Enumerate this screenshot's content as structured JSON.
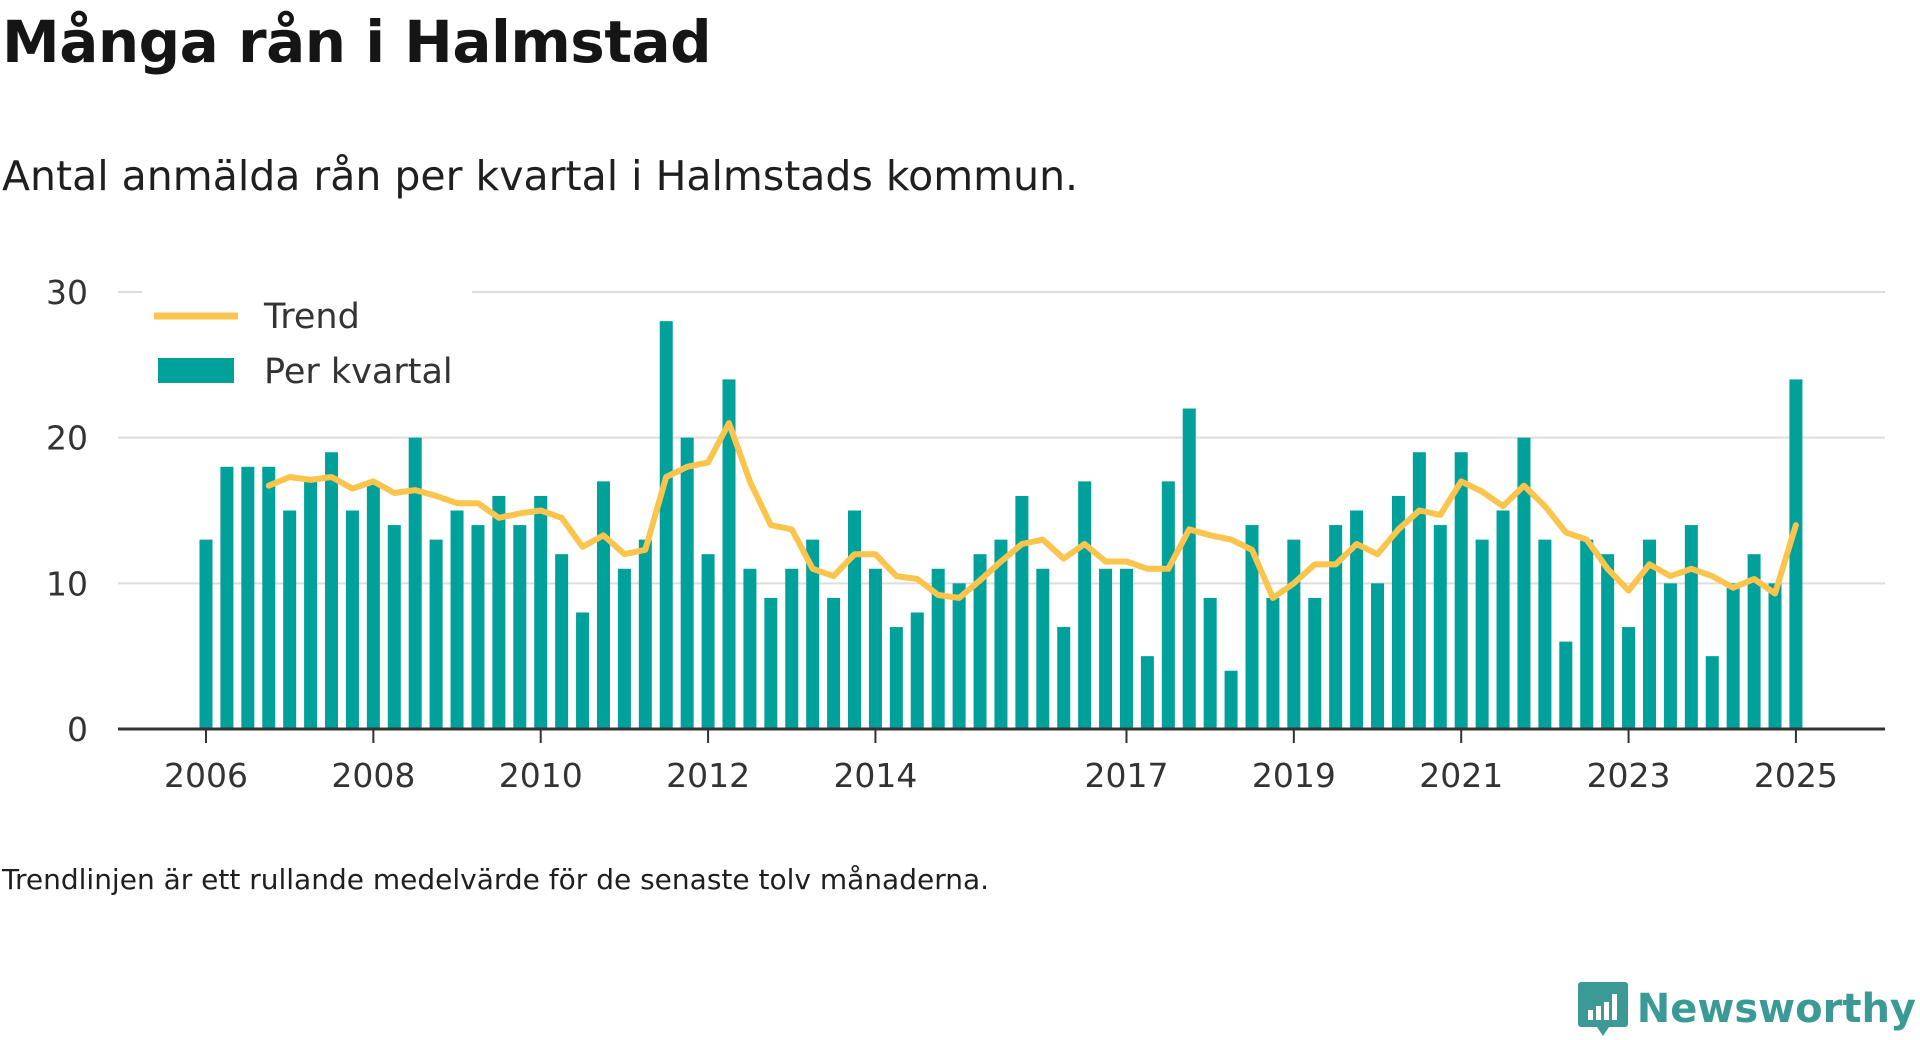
{
  "title": "Många rån i Halmstad",
  "subtitle": "Antal anmälda rån per kvartal i Halmstads kommun.",
  "footnote": "Trendlinjen är ett rullande medelvärde för de senaste tolv månaderna.",
  "brand": {
    "name": "Newsworthy",
    "color": "#3b9a95",
    "logo_icon": "bar-chart-speech-bubble-icon"
  },
  "chart_data": {
    "type": "bar",
    "x_start": "2006 Q1",
    "ylim": [
      0,
      30
    ],
    "yticks": [
      0,
      10,
      20,
      30
    ],
    "xticks": [
      "2006",
      "2008",
      "2010",
      "2012",
      "2014",
      "2017",
      "2019",
      "2021",
      "2023",
      "2025"
    ],
    "xtick_quarter_index": [
      0,
      8,
      16,
      24,
      32,
      44,
      52,
      60,
      68,
      76
    ],
    "grid": true,
    "legend_position": "top-left",
    "colors": {
      "bars": "#00a19a",
      "trend": "#fbc44d",
      "grid": "#dddddd",
      "axis": "#333333"
    },
    "series": [
      {
        "name": "Per kvartal",
        "type": "bar",
        "values": [
          13,
          18,
          18,
          18,
          15,
          17,
          19,
          15,
          17,
          14,
          20,
          13,
          15,
          14,
          16,
          14,
          16,
          12,
          8,
          17,
          11,
          13,
          28,
          20,
          12,
          24,
          11,
          9,
          11,
          13,
          9,
          15,
          11,
          7,
          8,
          11,
          10,
          12,
          13,
          16,
          11,
          7,
          17,
          11,
          11,
          5,
          17,
          22,
          9,
          4,
          14,
          9,
          13,
          9,
          14,
          15,
          10,
          16,
          19,
          14,
          19,
          13,
          15,
          20,
          13,
          6,
          13,
          12,
          7,
          13,
          10,
          14,
          5,
          10,
          12,
          10,
          24
        ]
      },
      {
        "name": "Trend",
        "type": "line",
        "start_index": 3,
        "values": [
          16.7,
          17.3,
          17.1,
          17.3,
          16.5,
          17.0,
          16.2,
          16.4,
          16.0,
          15.5,
          15.5,
          14.5,
          14.8,
          15.0,
          14.5,
          12.5,
          13.3,
          12.0,
          12.3,
          17.3,
          18.0,
          18.3,
          21.0,
          17.0,
          14.0,
          13.7,
          11.0,
          10.5,
          12.0,
          12.0,
          10.5,
          10.3,
          9.2,
          9.0,
          10.2,
          11.5,
          12.7,
          13.0,
          11.7,
          12.7,
          11.5,
          11.5,
          11.0,
          11.0,
          13.7,
          13.3,
          13.0,
          12.3,
          9.0,
          10.0,
          11.3,
          11.3,
          12.7,
          12.0,
          13.7,
          15.0,
          14.7,
          17.0,
          16.3,
          15.3,
          16.7,
          15.3,
          13.5,
          13.0,
          11.0,
          9.5,
          11.3,
          10.5,
          11.0,
          10.5,
          9.7,
          10.3,
          9.3,
          14.0
        ]
      }
    ]
  }
}
